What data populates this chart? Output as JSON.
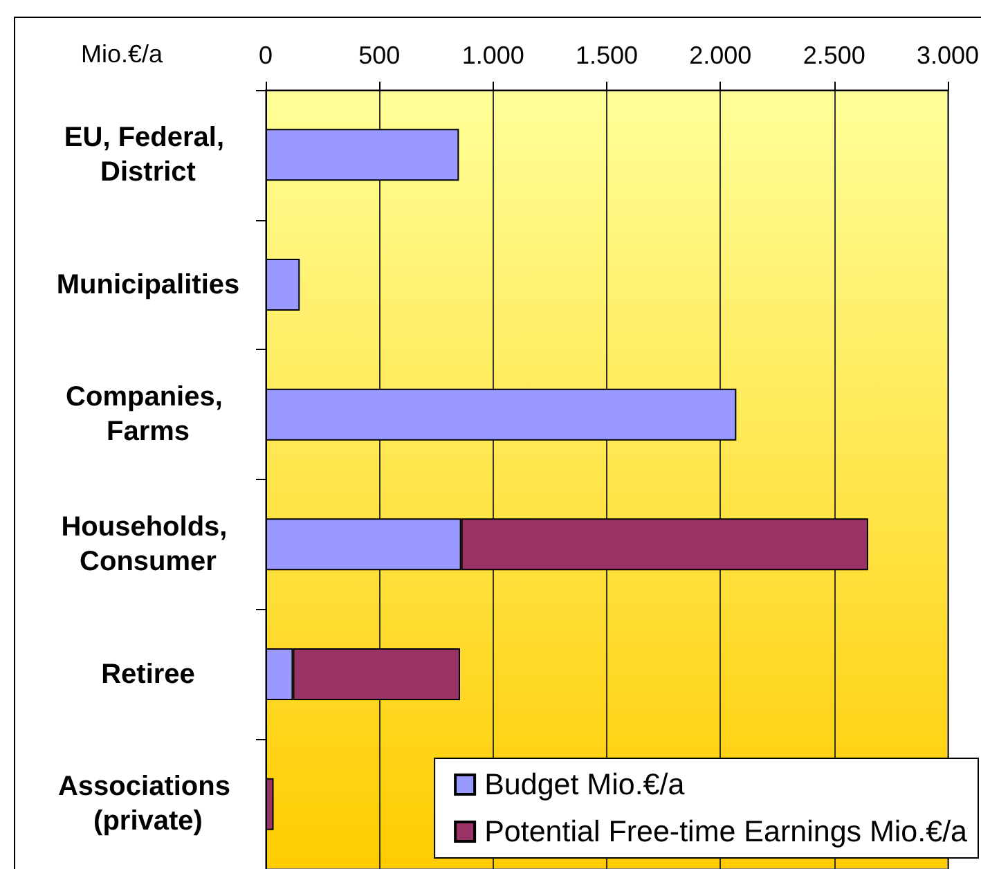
{
  "chart_data": {
    "type": "bar",
    "orientation": "horizontal",
    "stacked": true,
    "xlabel": "Mio.€/a",
    "categories": [
      "EU, Federal, District",
      "Municipalities",
      "Companies, Farms",
      "Households, Consumer",
      "Retiree",
      "Associations (private)"
    ],
    "series": [
      {
        "name": "Budget Mio.€/a",
        "color": "#9999ff",
        "values": [
          850,
          150,
          2070,
          860,
          120,
          null
        ]
      },
      {
        "name": "Potential Free-time Earnings Mio.€/a",
        "color": "#993366",
        "values": [
          null,
          null,
          null,
          1790,
          735,
          35
        ]
      }
    ],
    "xlim": [
      0,
      3000
    ],
    "xticks": [
      0,
      500,
      {
        "value": 1000,
        "label": "1.000"
      },
      {
        "value": 1500,
        "label": "1.500"
      },
      {
        "value": 2000,
        "label": "2.000"
      },
      {
        "value": 2500,
        "label": "2.500"
      },
      {
        "value": 3000,
        "label": "3.000"
      }
    ],
    "grid": "x",
    "legend": "bottom right"
  }
}
